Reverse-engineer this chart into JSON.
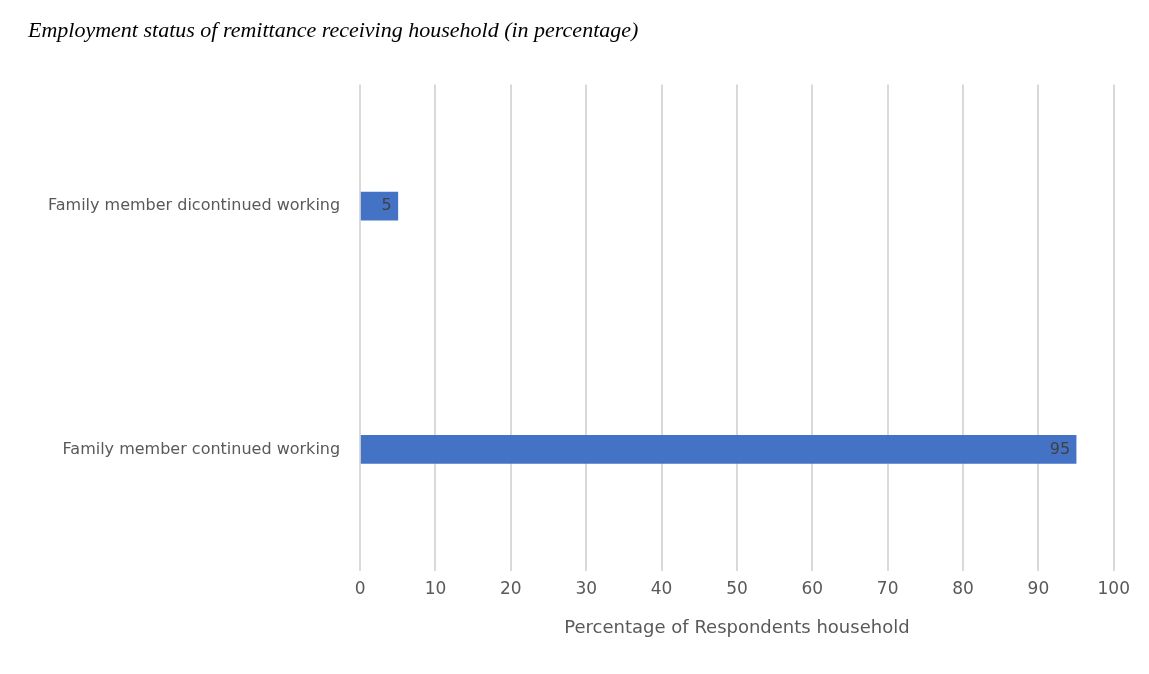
{
  "chart_data": {
    "type": "bar",
    "orientation": "horizontal",
    "title": "Employment status of remittance receiving household (in percentage)",
    "xlabel": "Percentage of Respondents household",
    "categories": [
      "Family member dicontinued working",
      "Family member continued working"
    ],
    "values": [
      5,
      95
    ],
    "color": "#4472c4",
    "xlim": [
      0,
      100
    ],
    "xticks": [
      0,
      10,
      20,
      30,
      40,
      50,
      60,
      70,
      80,
      90,
      100
    ],
    "grid": "x",
    "data_labels": true,
    "legend": false
  }
}
